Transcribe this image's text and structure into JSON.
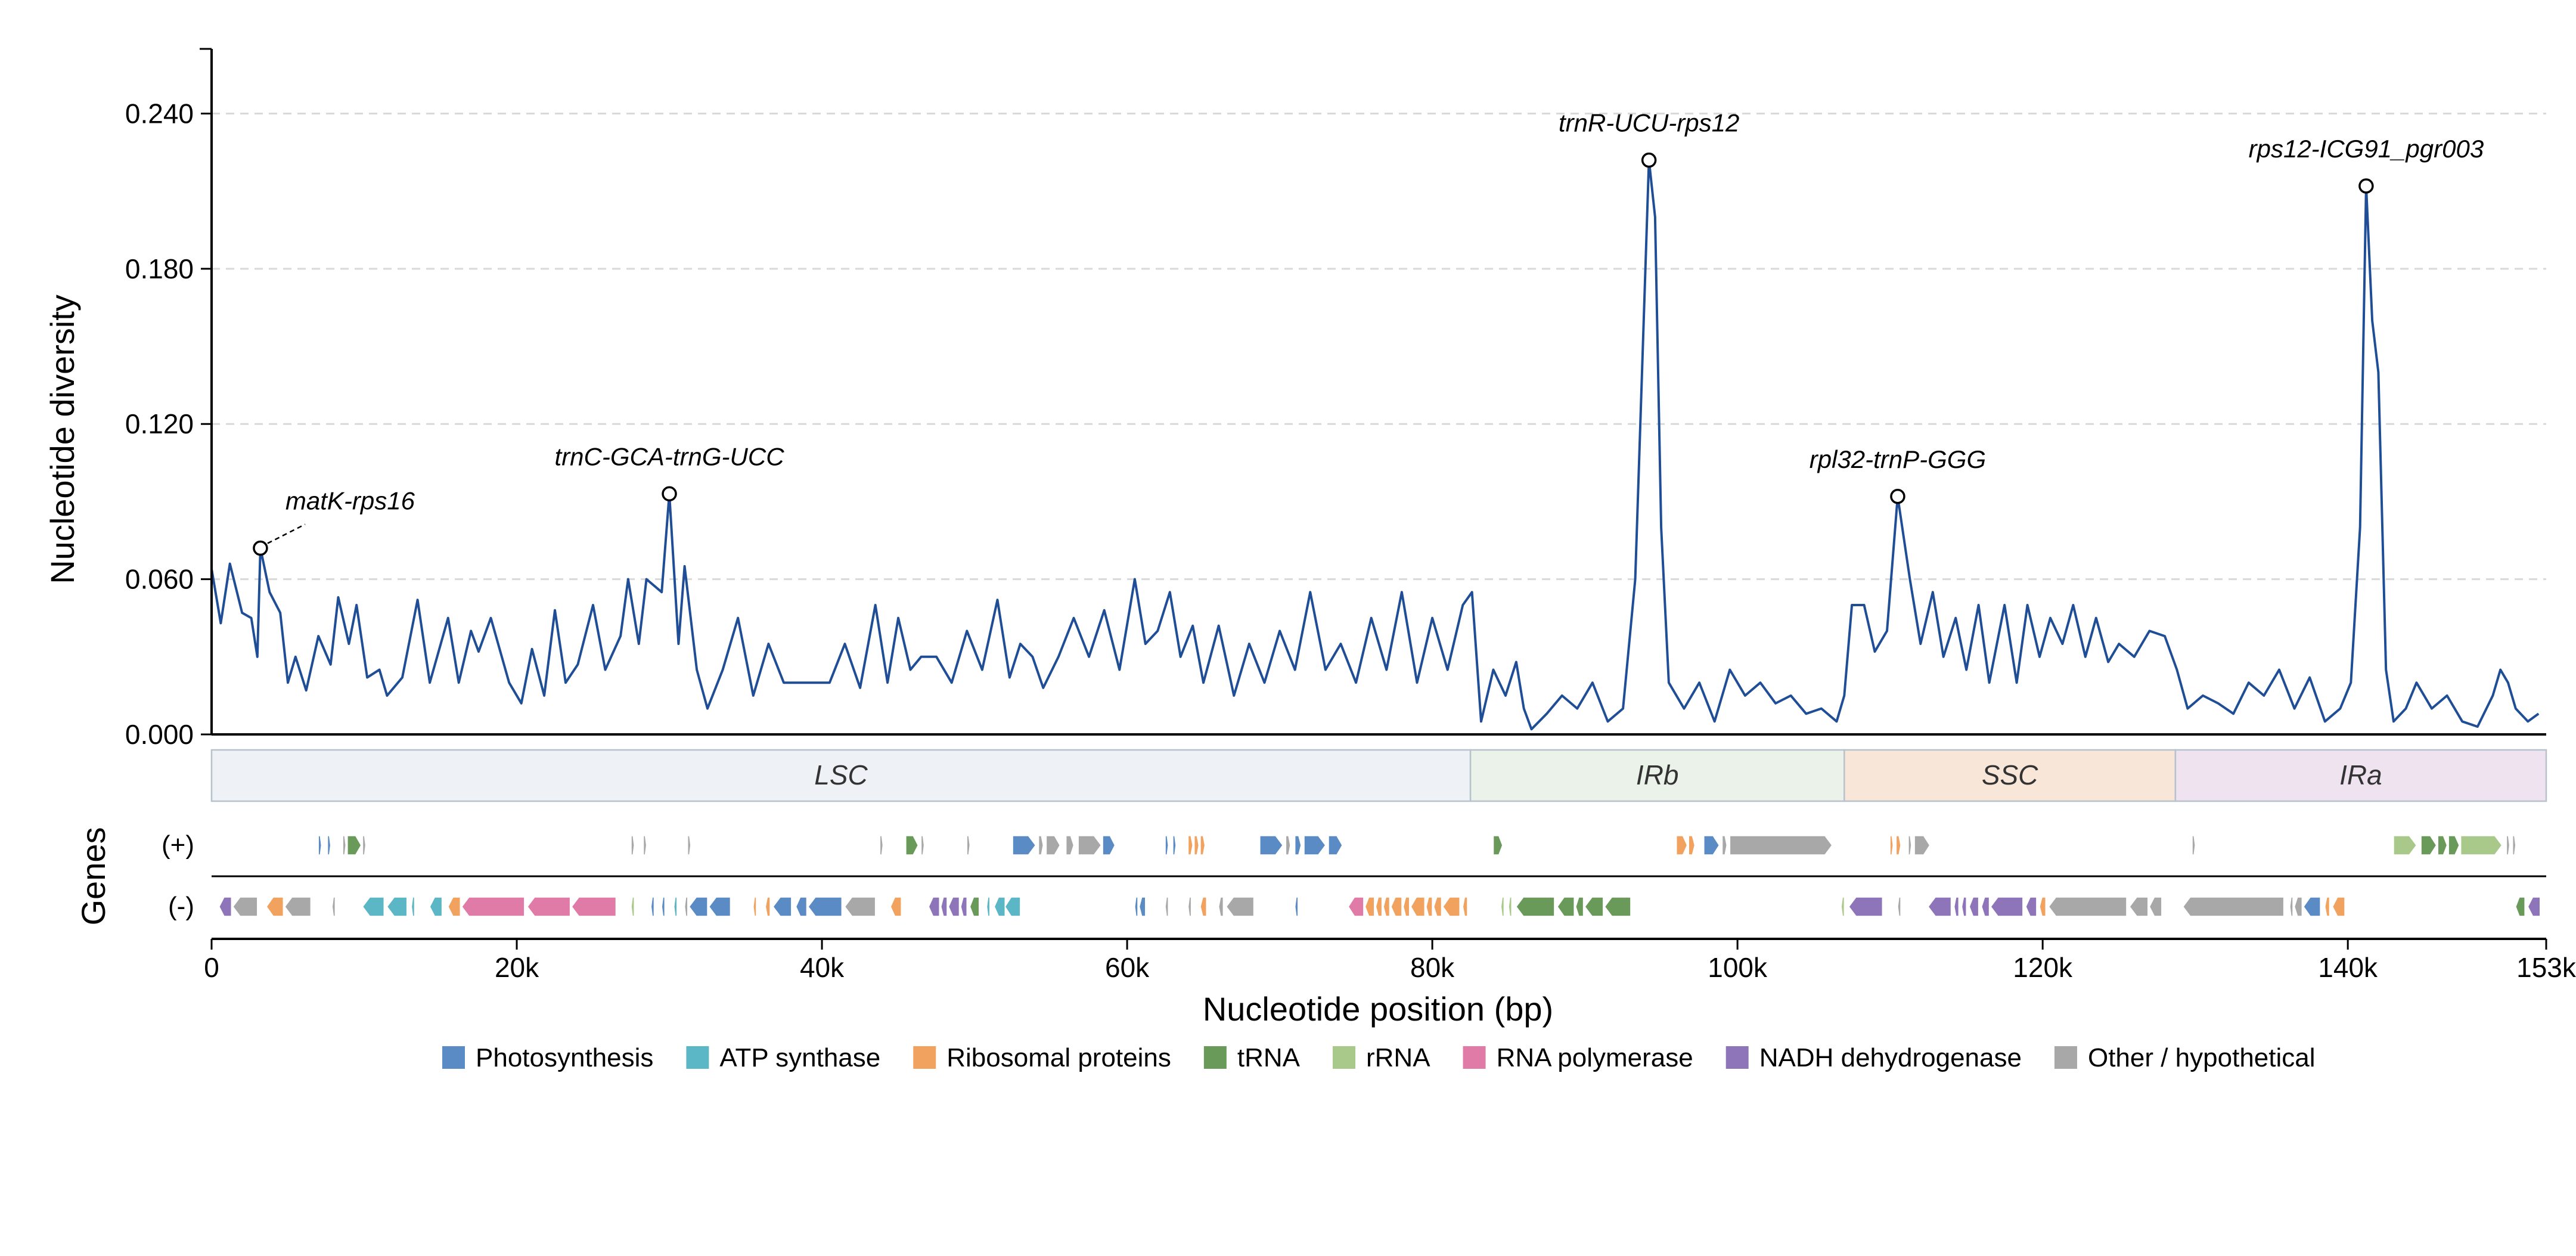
{
  "chart_data": {
    "type": "line",
    "ylabel": "Nucleotide diversity",
    "xlabel": "Nucleotide position (bp)",
    "genes_label": "Genes",
    "ylim": [
      0,
      0.265
    ],
    "xlim": [
      0,
      153000
    ],
    "y_ticks": [
      {
        "value": 0.0,
        "label": "0.000"
      },
      {
        "value": 0.06,
        "label": "0.060"
      },
      {
        "value": 0.12,
        "label": "0.120"
      },
      {
        "value": 0.18,
        "label": "0.180"
      },
      {
        "value": 0.24,
        "label": "0.240"
      }
    ],
    "x_ticks": [
      {
        "value": 0,
        "label": "0"
      },
      {
        "value": 20000,
        "label": "20k"
      },
      {
        "value": 40000,
        "label": "40k"
      },
      {
        "value": 60000,
        "label": "60k"
      },
      {
        "value": 80000,
        "label": "80k"
      },
      {
        "value": 100000,
        "label": "100k"
      },
      {
        "value": 120000,
        "label": "120k"
      },
      {
        "value": 140000,
        "label": "140k"
      },
      {
        "value": 153000,
        "label": "153k"
      }
    ],
    "grid": "horizontal dashed",
    "line_color": "#1f4e96",
    "pi_series": [
      [
        0,
        0.064
      ],
      [
        600,
        0.043
      ],
      [
        1200,
        0.066
      ],
      [
        2000,
        0.047
      ],
      [
        2600,
        0.045
      ],
      [
        3000,
        0.03
      ],
      [
        3200,
        0.072
      ],
      [
        3800,
        0.055
      ],
      [
        4500,
        0.047
      ],
      [
        5000,
        0.02
      ],
      [
        5500,
        0.03
      ],
      [
        6200,
        0.017
      ],
      [
        7000,
        0.038
      ],
      [
        7800,
        0.027
      ],
      [
        8300,
        0.053
      ],
      [
        9000,
        0.035
      ],
      [
        9500,
        0.05
      ],
      [
        10200,
        0.022
      ],
      [
        11000,
        0.025
      ],
      [
        11500,
        0.015
      ],
      [
        12500,
        0.022
      ],
      [
        13500,
        0.052
      ],
      [
        14300,
        0.02
      ],
      [
        15500,
        0.045
      ],
      [
        16200,
        0.02
      ],
      [
        17000,
        0.04
      ],
      [
        17500,
        0.032
      ],
      [
        18300,
        0.045
      ],
      [
        19500,
        0.02
      ],
      [
        20300,
        0.012
      ],
      [
        21000,
        0.033
      ],
      [
        21800,
        0.015
      ],
      [
        22500,
        0.048
      ],
      [
        23200,
        0.02
      ],
      [
        24000,
        0.027
      ],
      [
        25000,
        0.05
      ],
      [
        25800,
        0.025
      ],
      [
        26800,
        0.038
      ],
      [
        27300,
        0.06
      ],
      [
        28000,
        0.035
      ],
      [
        28500,
        0.06
      ],
      [
        29500,
        0.055
      ],
      [
        30000,
        0.093
      ],
      [
        30600,
        0.035
      ],
      [
        31000,
        0.065
      ],
      [
        31800,
        0.025
      ],
      [
        32500,
        0.01
      ],
      [
        33500,
        0.025
      ],
      [
        34500,
        0.045
      ],
      [
        35500,
        0.015
      ],
      [
        36500,
        0.035
      ],
      [
        37500,
        0.02
      ],
      [
        38500,
        0.02
      ],
      [
        39500,
        0.02
      ],
      [
        40500,
        0.02
      ],
      [
        41500,
        0.035
      ],
      [
        42500,
        0.018
      ],
      [
        43500,
        0.05
      ],
      [
        44300,
        0.02
      ],
      [
        45000,
        0.045
      ],
      [
        45800,
        0.025
      ],
      [
        46500,
        0.03
      ],
      [
        47500,
        0.03
      ],
      [
        48500,
        0.02
      ],
      [
        49500,
        0.04
      ],
      [
        50500,
        0.025
      ],
      [
        51500,
        0.052
      ],
      [
        52300,
        0.022
      ],
      [
        53000,
        0.035
      ],
      [
        53800,
        0.03
      ],
      [
        54500,
        0.018
      ],
      [
        55500,
        0.03
      ],
      [
        56500,
        0.045
      ],
      [
        57500,
        0.03
      ],
      [
        58500,
        0.048
      ],
      [
        59500,
        0.025
      ],
      [
        60500,
        0.06
      ],
      [
        61200,
        0.035
      ],
      [
        62000,
        0.04
      ],
      [
        62800,
        0.055
      ],
      [
        63500,
        0.03
      ],
      [
        64300,
        0.042
      ],
      [
        65000,
        0.02
      ],
      [
        66000,
        0.042
      ],
      [
        67000,
        0.015
      ],
      [
        68000,
        0.035
      ],
      [
        69000,
        0.02
      ],
      [
        70000,
        0.04
      ],
      [
        71000,
        0.025
      ],
      [
        72000,
        0.055
      ],
      [
        73000,
        0.025
      ],
      [
        74000,
        0.035
      ],
      [
        75000,
        0.02
      ],
      [
        76000,
        0.045
      ],
      [
        77000,
        0.025
      ],
      [
        78000,
        0.055
      ],
      [
        79000,
        0.02
      ],
      [
        80000,
        0.045
      ],
      [
        81000,
        0.025
      ],
      [
        82000,
        0.05
      ],
      [
        82600,
        0.055
      ],
      [
        83200,
        0.005
      ],
      [
        84000,
        0.025
      ],
      [
        84800,
        0.015
      ],
      [
        85500,
        0.028
      ],
      [
        86000,
        0.01
      ],
      [
        86500,
        0.002
      ],
      [
        87500,
        0.008
      ],
      [
        88500,
        0.015
      ],
      [
        89500,
        0.01
      ],
      [
        90500,
        0.02
      ],
      [
        91500,
        0.005
      ],
      [
        92500,
        0.01
      ],
      [
        93300,
        0.06
      ],
      [
        93800,
        0.15
      ],
      [
        94200,
        0.222
      ],
      [
        94600,
        0.2
      ],
      [
        95000,
        0.08
      ],
      [
        95500,
        0.02
      ],
      [
        96500,
        0.01
      ],
      [
        97500,
        0.02
      ],
      [
        98500,
        0.005
      ],
      [
        99500,
        0.025
      ],
      [
        100500,
        0.015
      ],
      [
        101500,
        0.02
      ],
      [
        102500,
        0.012
      ],
      [
        103500,
        0.015
      ],
      [
        104500,
        0.008
      ],
      [
        105500,
        0.01
      ],
      [
        106500,
        0.005
      ],
      [
        107000,
        0.015
      ],
      [
        107500,
        0.05
      ],
      [
        108300,
        0.05
      ],
      [
        109000,
        0.032
      ],
      [
        109800,
        0.04
      ],
      [
        110500,
        0.092
      ],
      [
        111300,
        0.06
      ],
      [
        112000,
        0.035
      ],
      [
        112800,
        0.055
      ],
      [
        113500,
        0.03
      ],
      [
        114300,
        0.045
      ],
      [
        115000,
        0.025
      ],
      [
        115800,
        0.05
      ],
      [
        116500,
        0.02
      ],
      [
        117500,
        0.05
      ],
      [
        118300,
        0.02
      ],
      [
        119000,
        0.05
      ],
      [
        119800,
        0.03
      ],
      [
        120500,
        0.045
      ],
      [
        121300,
        0.035
      ],
      [
        122000,
        0.05
      ],
      [
        122800,
        0.03
      ],
      [
        123500,
        0.045
      ],
      [
        124300,
        0.028
      ],
      [
        125000,
        0.035
      ],
      [
        126000,
        0.03
      ],
      [
        127000,
        0.04
      ],
      [
        128000,
        0.038
      ],
      [
        128800,
        0.025
      ],
      [
        129500,
        0.01
      ],
      [
        130500,
        0.015
      ],
      [
        131500,
        0.012
      ],
      [
        132500,
        0.008
      ],
      [
        133500,
        0.02
      ],
      [
        134500,
        0.015
      ],
      [
        135500,
        0.025
      ],
      [
        136500,
        0.01
      ],
      [
        137500,
        0.022
      ],
      [
        138500,
        0.005
      ],
      [
        139500,
        0.01
      ],
      [
        140200,
        0.02
      ],
      [
        140800,
        0.08
      ],
      [
        141200,
        0.212
      ],
      [
        141600,
        0.16
      ],
      [
        142000,
        0.14
      ],
      [
        142500,
        0.025
      ],
      [
        143000,
        0.005
      ],
      [
        143800,
        0.01
      ],
      [
        144500,
        0.02
      ],
      [
        145500,
        0.01
      ],
      [
        146500,
        0.015
      ],
      [
        147500,
        0.005
      ],
      [
        148500,
        0.003
      ],
      [
        149500,
        0.015
      ],
      [
        150000,
        0.025
      ],
      [
        150500,
        0.02
      ],
      [
        151000,
        0.01
      ],
      [
        151800,
        0.005
      ],
      [
        152500,
        0.008
      ]
    ],
    "peaks": [
      {
        "x": 3200,
        "y": 0.072,
        "label": "matK-rps16"
      },
      {
        "x": 30000,
        "y": 0.093,
        "label": "trnC-GCA-trnG-UCC"
      },
      {
        "x": 94200,
        "y": 0.222,
        "label": "trnR-UCU-rps12"
      },
      {
        "x": 110500,
        "y": 0.092,
        "label": "rpl32-trnP-GGG"
      },
      {
        "x": 141200,
        "y": 0.212,
        "label": "rps12-ICG91_pgr003"
      }
    ],
    "regions": [
      {
        "name": "LSC",
        "start": 0,
        "end": 82500,
        "color": "#eef2f6"
      },
      {
        "name": "IRb",
        "start": 82500,
        "end": 107000,
        "color": "#ebf2ea"
      },
      {
        "name": "SSC",
        "start": 107000,
        "end": 128700,
        "color": "#f8e6d8"
      },
      {
        "name": "IRa",
        "start": 128700,
        "end": 153000,
        "color": "#f0e3f0"
      }
    ],
    "strand_labels": {
      "plus": "(+)",
      "minus": "(-)"
    },
    "gene_categories": [
      {
        "key": "photo",
        "name": "Photosynthesis",
        "color": "#5b8bc4"
      },
      {
        "key": "atp",
        "name": "ATP synthase",
        "color": "#5bb6c6"
      },
      {
        "key": "ribo",
        "name": "Ribosomal proteins",
        "color": "#f0a25e"
      },
      {
        "key": "trna",
        "name": "tRNA",
        "color": "#6a9a5a"
      },
      {
        "key": "rrna",
        "name": "rRNA",
        "color": "#a9c98a"
      },
      {
        "key": "rnap",
        "name": "RNA polymerase",
        "color": "#e07ba8"
      },
      {
        "key": "ndh",
        "name": "NADH dehydrogenase",
        "color": "#8e74b8"
      },
      {
        "key": "other",
        "name": "Other / hypothetical",
        "color": "#a8a8a8"
      }
    ],
    "genes_plus": [
      [
        7000,
        7200,
        "photo"
      ],
      [
        7600,
        7800,
        "photo"
      ],
      [
        8600,
        8800,
        "other"
      ],
      [
        8900,
        9800,
        "trna"
      ],
      [
        9900,
        10100,
        "other"
      ],
      [
        27500,
        27700,
        "other"
      ],
      [
        28300,
        28500,
        "other"
      ],
      [
        31200,
        31400,
        "other"
      ],
      [
        43800,
        44000,
        "other"
      ],
      [
        45500,
        46300,
        "trna"
      ],
      [
        46500,
        46700,
        "other"
      ],
      [
        49500,
        49700,
        "other"
      ],
      [
        52500,
        54000,
        "photo"
      ],
      [
        54200,
        54500,
        "other"
      ],
      [
        54700,
        55600,
        "other"
      ],
      [
        56000,
        56500,
        "other"
      ],
      [
        56800,
        58300,
        "other"
      ],
      [
        58400,
        59200,
        "photo"
      ],
      [
        62500,
        62700,
        "photo"
      ],
      [
        63000,
        63200,
        "photo"
      ],
      [
        64000,
        64300,
        "ribo"
      ],
      [
        64400,
        64700,
        "ribo"
      ],
      [
        64800,
        65100,
        "ribo"
      ],
      [
        68700,
        70200,
        "photo"
      ],
      [
        70400,
        70700,
        "other"
      ],
      [
        71000,
        71400,
        "photo"
      ],
      [
        71600,
        73000,
        "photo"
      ],
      [
        73200,
        74100,
        "photo"
      ],
      [
        84000,
        84600,
        "trna"
      ],
      [
        96000,
        96700,
        "ribo"
      ],
      [
        96800,
        97200,
        "ribo"
      ],
      [
        97800,
        98800,
        "photo"
      ],
      [
        99000,
        99300,
        "other"
      ],
      [
        99500,
        106200,
        "other"
      ],
      [
        110000,
        110200,
        "ribo"
      ],
      [
        110400,
        110700,
        "ribo"
      ],
      [
        111200,
        111400,
        "other"
      ],
      [
        111600,
        112600,
        "other"
      ],
      [
        129800,
        130000,
        "other"
      ],
      [
        143000,
        144500,
        "rrna"
      ],
      [
        144800,
        145800,
        "trna"
      ],
      [
        145900,
        146500,
        "trna"
      ],
      [
        146600,
        147300,
        "trna"
      ],
      [
        147400,
        150100,
        "rrna"
      ],
      [
        150400,
        150600,
        "other"
      ],
      [
        150800,
        151000,
        "other"
      ]
    ],
    "genes_minus": [
      [
        500,
        1300,
        "ndh"
      ],
      [
        1400,
        3000,
        "other"
      ],
      [
        3600,
        4700,
        "ribo"
      ],
      [
        4800,
        6500,
        "other"
      ],
      [
        7900,
        8100,
        "other"
      ],
      [
        9900,
        11300,
        "atp"
      ],
      [
        11500,
        12800,
        "atp"
      ],
      [
        13100,
        13300,
        "atp"
      ],
      [
        14300,
        15100,
        "atp"
      ],
      [
        15500,
        16300,
        "ribo"
      ],
      [
        16400,
        20500,
        "rnap"
      ],
      [
        20700,
        23500,
        "rnap"
      ],
      [
        23600,
        26500,
        "rnap"
      ],
      [
        27500,
        27700,
        "rrna"
      ],
      [
        28800,
        29000,
        "photo"
      ],
      [
        29500,
        29700,
        "photo"
      ],
      [
        30300,
        30500,
        "atp"
      ],
      [
        31000,
        31200,
        "other"
      ],
      [
        31300,
        32500,
        "photo"
      ],
      [
        32600,
        34000,
        "photo"
      ],
      [
        35500,
        35700,
        "ribo"
      ],
      [
        36300,
        36600,
        "ribo"
      ],
      [
        36800,
        38000,
        "photo"
      ],
      [
        38300,
        39000,
        "photo"
      ],
      [
        39100,
        41300,
        "photo"
      ],
      [
        41500,
        43500,
        "other"
      ],
      [
        44500,
        45200,
        "ribo"
      ],
      [
        47000,
        47700,
        "ndh"
      ],
      [
        47800,
        48200,
        "ndh"
      ],
      [
        48300,
        49000,
        "ndh"
      ],
      [
        49100,
        49500,
        "ndh"
      ],
      [
        49700,
        50300,
        "trna"
      ],
      [
        50800,
        51000,
        "atp"
      ],
      [
        51300,
        52000,
        "atp"
      ],
      [
        52000,
        53000,
        "atp"
      ],
      [
        60500,
        60700,
        "photo"
      ],
      [
        60800,
        61200,
        "photo"
      ],
      [
        62500,
        62700,
        "other"
      ],
      [
        64000,
        64200,
        "other"
      ],
      [
        64800,
        65200,
        "ribo"
      ],
      [
        66000,
        66300,
        "other"
      ],
      [
        66500,
        68300,
        "other"
      ],
      [
        71000,
        71200,
        "photo"
      ],
      [
        74500,
        75500,
        "rnap"
      ],
      [
        75600,
        76200,
        "ribo"
      ],
      [
        76300,
        76700,
        "ribo"
      ],
      [
        76800,
        77200,
        "ribo"
      ],
      [
        77300,
        78000,
        "ribo"
      ],
      [
        78100,
        78500,
        "ribo"
      ],
      [
        78600,
        79500,
        "ribo"
      ],
      [
        79600,
        80000,
        "ribo"
      ],
      [
        80100,
        80600,
        "ribo"
      ],
      [
        80700,
        81800,
        "ribo"
      ],
      [
        82000,
        82300,
        "ribo"
      ],
      [
        84500,
        84700,
        "rrna"
      ],
      [
        85000,
        85200,
        "rrna"
      ],
      [
        85500,
        88000,
        "trna"
      ],
      [
        88200,
        89300,
        "trna"
      ],
      [
        89400,
        89900,
        "trna"
      ],
      [
        90000,
        91200,
        "trna"
      ],
      [
        91300,
        93000,
        "trna"
      ],
      [
        106800,
        107000,
        "rrna"
      ],
      [
        107300,
        109500,
        "ndh"
      ],
      [
        110500,
        110700,
        "other"
      ],
      [
        112500,
        114000,
        "ndh"
      ],
      [
        114200,
        114500,
        "ndh"
      ],
      [
        114700,
        115000,
        "ndh"
      ],
      [
        115200,
        115800,
        "ndh"
      ],
      [
        116000,
        116500,
        "ndh"
      ],
      [
        116600,
        118700,
        "ndh"
      ],
      [
        118900,
        119600,
        "ndh"
      ],
      [
        119800,
        120200,
        "ribo"
      ],
      [
        120400,
        125500,
        "other"
      ],
      [
        125700,
        126900,
        "other"
      ],
      [
        127000,
        127800,
        "other"
      ],
      [
        129200,
        135800,
        "other"
      ],
      [
        136200,
        136400,
        "other"
      ],
      [
        136500,
        137000,
        "other"
      ],
      [
        137100,
        138200,
        "photo"
      ],
      [
        138500,
        138800,
        "ribo"
      ],
      [
        139000,
        139800,
        "ribo"
      ],
      [
        151000,
        151600,
        "trna"
      ],
      [
        151800,
        152600,
        "ndh"
      ]
    ]
  }
}
